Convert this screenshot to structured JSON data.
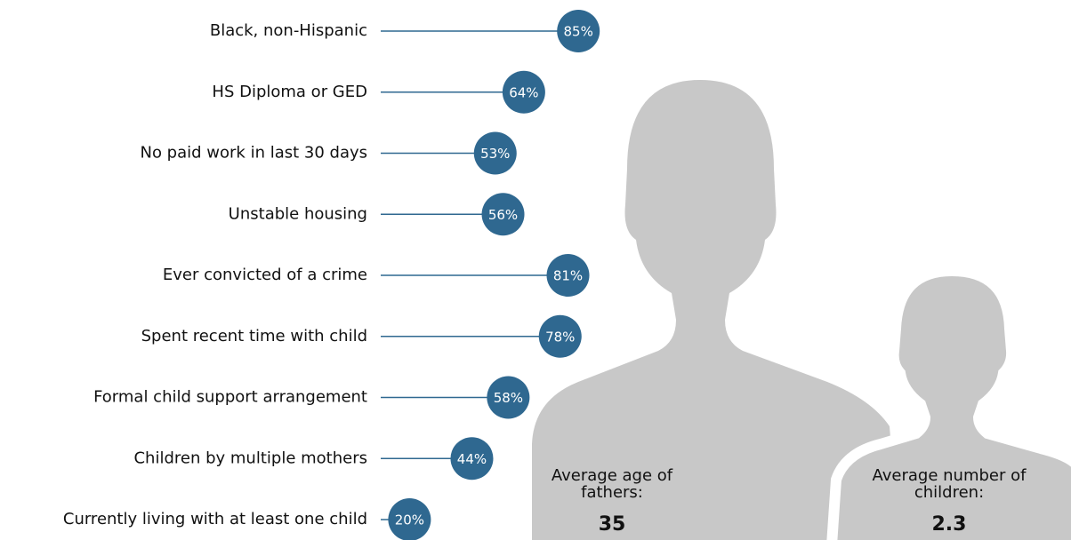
{
  "chart_data": {
    "type": "lollipop",
    "categories": [
      "Black, non-Hispanic",
      "HS Diploma or GED",
      "No paid work in last 30 days",
      "Unstable housing",
      "Ever convicted of a crime",
      "Spent recent time with child",
      "Formal child support arrangement",
      "Children by multiple mothers",
      "Currently living with at least one child"
    ],
    "values": [
      85,
      64,
      53,
      56,
      81,
      78,
      58,
      44,
      20
    ],
    "value_labels": [
      "85%",
      "64%",
      "53%",
      "56%",
      "81%",
      "78%",
      "58%",
      "44%",
      "20%"
    ],
    "color": "#2f6890",
    "annotations": [
      {
        "label": "Average age of fathers:",
        "value": 35
      },
      {
        "label": "Average number of children:",
        "value": 2.3
      }
    ]
  }
}
